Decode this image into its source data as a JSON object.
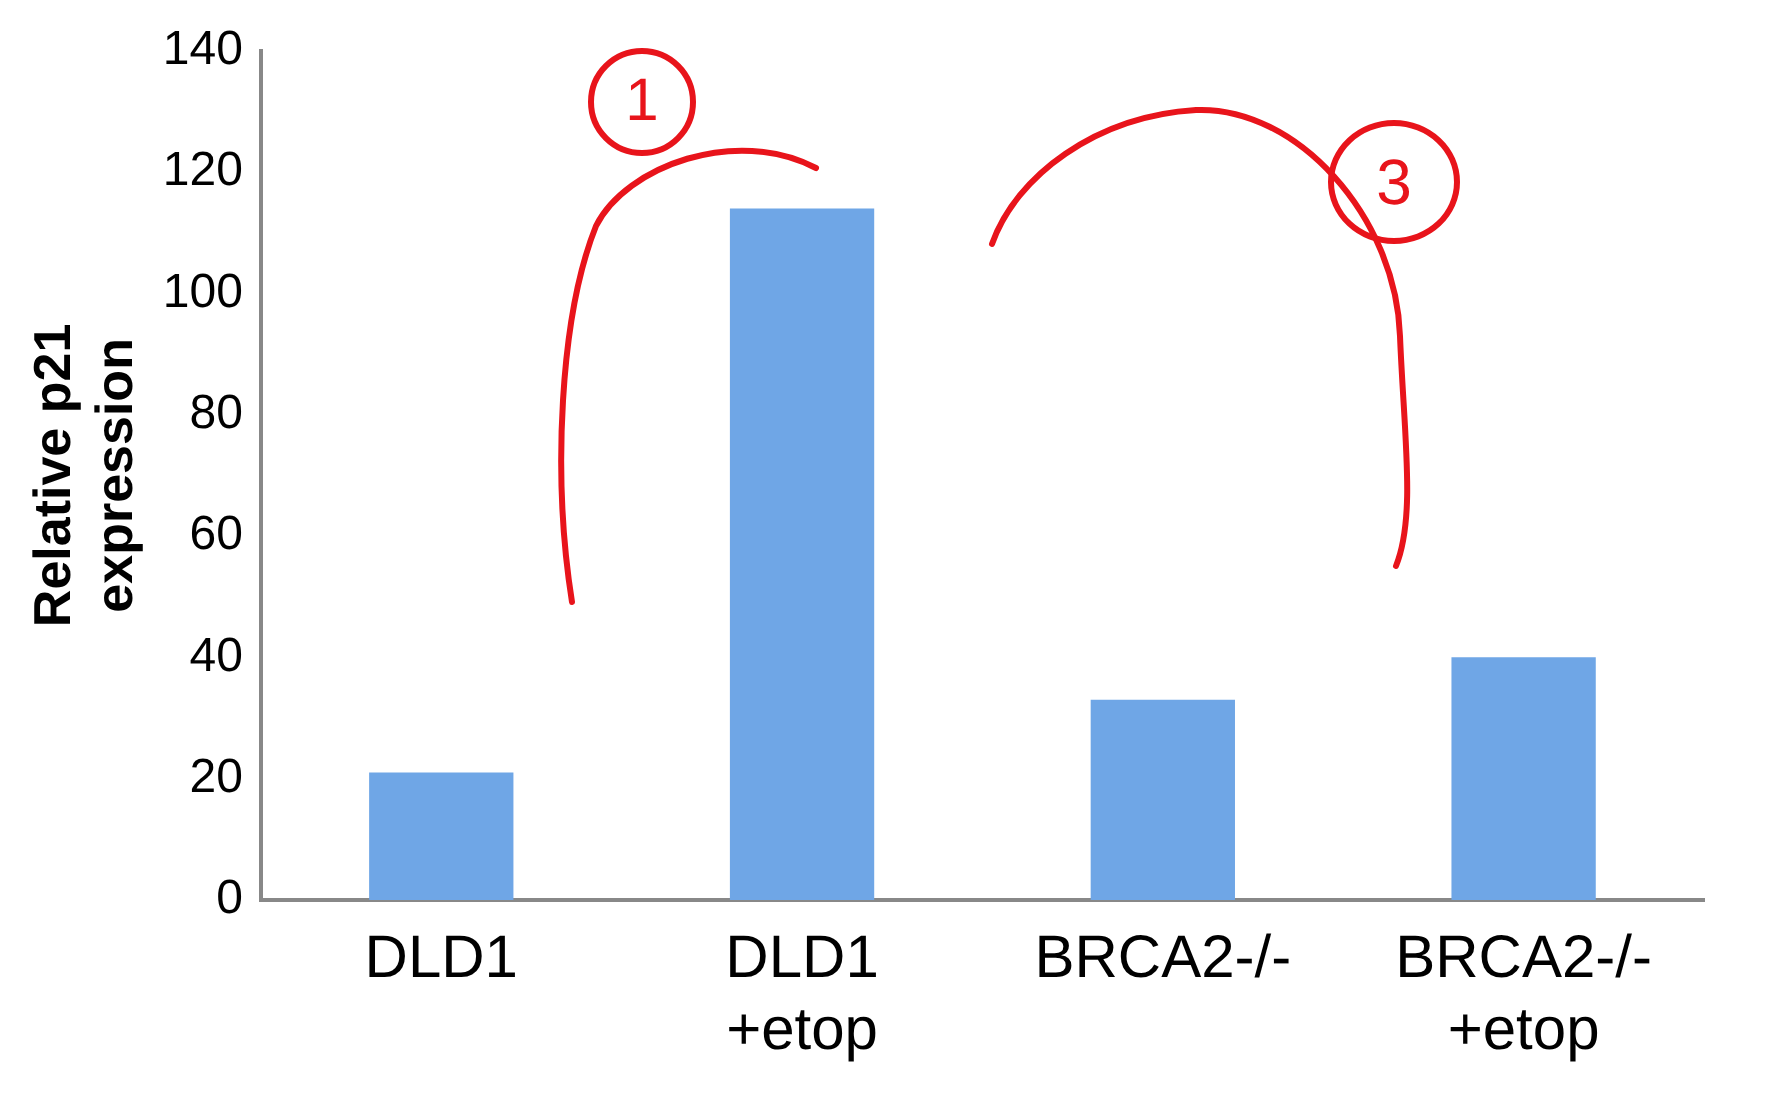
{
  "chart_data": {
    "type": "bar",
    "ylabel": "Relative p21 expression",
    "categories": [
      "DLD1",
      "DLD1 +etop",
      "BRCA2-/-",
      "BRCA2-/- +etop"
    ],
    "values": [
      21,
      114,
      33,
      40
    ],
    "color": "#6fa6e6",
    "ylim": [
      0,
      140
    ],
    "yticks": [
      0,
      20,
      40,
      60,
      80,
      100,
      120,
      140
    ],
    "grid": false,
    "annotations": [
      "1",
      "3"
    ]
  }
}
